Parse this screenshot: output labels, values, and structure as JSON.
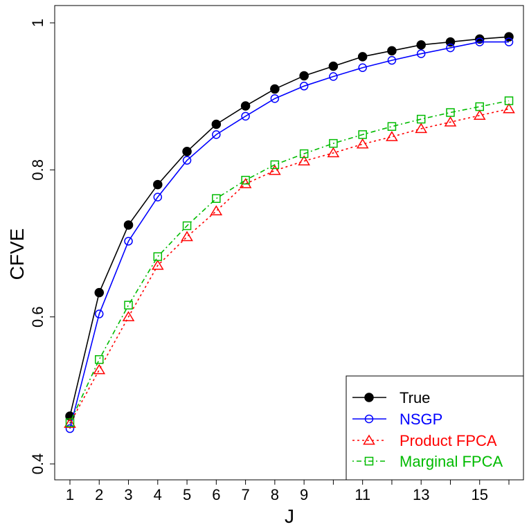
{
  "chart_data": {
    "type": "line",
    "title": "",
    "xlabel": "J",
    "ylabel": "CFVE",
    "xlim": [
      0.55,
      16.45
    ],
    "ylim": [
      0.4,
      1.0
    ],
    "x": [
      1,
      2,
      3,
      4,
      5,
      6,
      7,
      8,
      9,
      10,
      11,
      12,
      13,
      14,
      15,
      16
    ],
    "xticks": [
      1,
      2,
      3,
      4,
      5,
      6,
      7,
      8,
      9,
      10,
      11,
      12,
      13,
      14,
      15,
      16
    ],
    "xtick_labels": [
      "1",
      "2",
      "3",
      "4",
      "5",
      "6",
      "7",
      "8",
      "9",
      "",
      "11",
      "",
      "13",
      "",
      "15",
      ""
    ],
    "yticks": [
      0.4,
      0.6,
      0.8,
      1.0
    ],
    "ytick_labels": [
      "0.4",
      "0.6",
      "0.8",
      "1"
    ],
    "grid": false,
    "legend_position": "bottom-right",
    "series": [
      {
        "name": "True",
        "color": "#000000",
        "line": "solid",
        "marker": "filled-circle",
        "values": [
          0.465,
          0.633,
          0.725,
          0.78,
          0.825,
          0.862,
          0.887,
          0.91,
          0.928,
          0.941,
          0.954,
          0.962,
          0.97,
          0.974,
          0.978,
          0.981
        ]
      },
      {
        "name": "NSGP",
        "color": "#0000ff",
        "line": "solid",
        "marker": "open-circle",
        "values": [
          0.448,
          0.604,
          0.703,
          0.763,
          0.813,
          0.848,
          0.873,
          0.897,
          0.914,
          0.927,
          0.939,
          0.949,
          0.958,
          0.966,
          0.974,
          0.974
        ]
      },
      {
        "name": "Product FPCA",
        "color": "#ff0000",
        "line": "dotted",
        "marker": "open-triangle",
        "values": [
          0.455,
          0.528,
          0.6,
          0.67,
          0.709,
          0.744,
          0.781,
          0.799,
          0.812,
          0.823,
          0.835,
          0.845,
          0.856,
          0.865,
          0.874,
          0.883
        ]
      },
      {
        "name": "Marginal FPCA",
        "color": "#00bb00",
        "line": "dotdash",
        "marker": "open-square",
        "values": [
          0.456,
          0.542,
          0.616,
          0.682,
          0.724,
          0.761,
          0.786,
          0.807,
          0.822,
          0.836,
          0.848,
          0.859,
          0.869,
          0.878,
          0.886,
          0.894
        ]
      }
    ]
  }
}
